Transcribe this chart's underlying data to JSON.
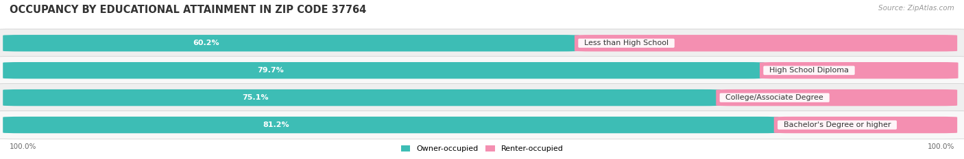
{
  "title": "OCCUPANCY BY EDUCATIONAL ATTAINMENT IN ZIP CODE 37764",
  "source": "Source: ZipAtlas.com",
  "categories": [
    "Less than High School",
    "High School Diploma",
    "College/Associate Degree",
    "Bachelor's Degree or higher"
  ],
  "owner_values": [
    60.2,
    79.7,
    75.1,
    81.2
  ],
  "renter_values": [
    39.8,
    20.4,
    24.9,
    18.8
  ],
  "owner_color": "#3DBDB5",
  "renter_color": "#F48FB1",
  "row_bg_color_odd": "#EFEFEF",
  "row_bg_color_even": "#F8F8F8",
  "title_fontsize": 10.5,
  "source_fontsize": 7.5,
  "bar_label_fontsize": 8,
  "cat_label_fontsize": 8,
  "tick_fontsize": 7.5,
  "legend_fontsize": 8,
  "left_label": "100.0%",
  "right_label": "100.0%"
}
